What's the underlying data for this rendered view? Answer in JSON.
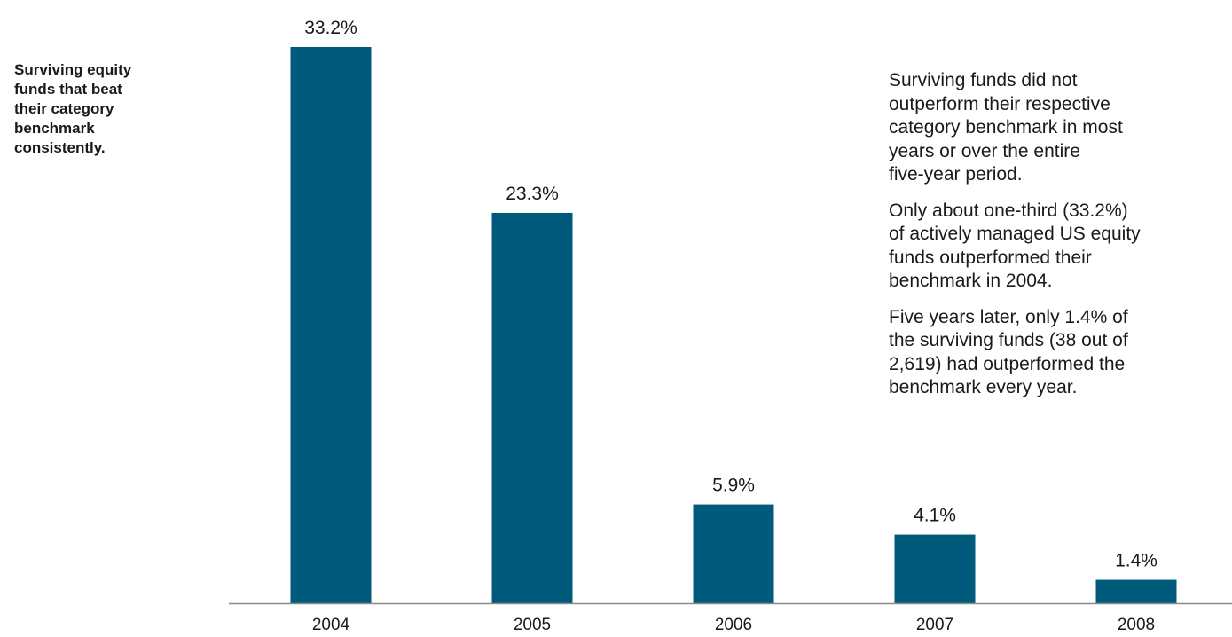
{
  "side_title": "Surviving equity\nfunds that beat\ntheir category\nbenchmark\nconsistently.",
  "notes": [
    "Surviving funds did not\noutperform their respective\ncategory benchmark in most\nyears or over the entire\nfive-year period.",
    "Only about one-third (33.2%)\nof actively managed US equity\nfunds outperformed their\nbenchmark in 2004.",
    "Five years later, only 1.4% of\nthe surviving funds (38 out of\n2,619) had outperformed the\nbenchmark every year."
  ],
  "colors": {
    "bar": "#005A7C",
    "axis": "#8a8a8a",
    "text": "#1a1a1a"
  },
  "chart_data": {
    "type": "bar",
    "categories": [
      "2004",
      "2005",
      "2006",
      "2007",
      "2008"
    ],
    "values": [
      33.2,
      23.3,
      5.9,
      4.1,
      1.4
    ],
    "value_labels": [
      "33.2%",
      "23.3%",
      "5.9%",
      "4.1%",
      "1.4%"
    ],
    "ylim": [
      0,
      33.2
    ],
    "grid": false,
    "legend": "none"
  }
}
